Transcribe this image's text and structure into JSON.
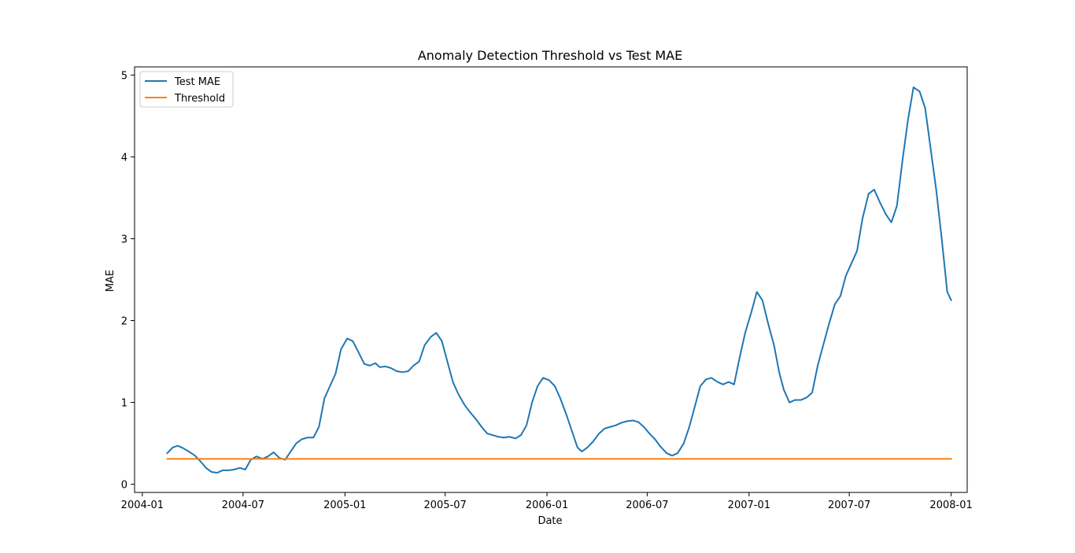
{
  "chart_data": {
    "type": "line",
    "title": "Anomaly Detection Threshold vs Test MAE",
    "xlabel": "Date",
    "ylabel": "MAE",
    "xlim": [
      "2003-12-18",
      "2008-01-30"
    ],
    "ylim": [
      -0.1,
      5.1
    ],
    "x_tick_labels": [
      "2004-01",
      "2004-07",
      "2005-01",
      "2005-07",
      "2006-01",
      "2006-07",
      "2007-01",
      "2007-07",
      "2008-01"
    ],
    "y_tick_labels": [
      "0",
      "1",
      "2",
      "3",
      "4",
      "5"
    ],
    "grid": false,
    "legend_position": "top-left",
    "series": [
      {
        "name": "Test MAE",
        "color": "#1f77b4",
        "points": [
          [
            "2004-02-15",
            0.38
          ],
          [
            "2004-02-25",
            0.45
          ],
          [
            "2004-03-05",
            0.47
          ],
          [
            "2004-03-15",
            0.44
          ],
          [
            "2004-03-25",
            0.4
          ],
          [
            "2004-04-05",
            0.35
          ],
          [
            "2004-04-15",
            0.28
          ],
          [
            "2004-04-25",
            0.2
          ],
          [
            "2004-05-05",
            0.15
          ],
          [
            "2004-05-15",
            0.14
          ],
          [
            "2004-05-25",
            0.17
          ],
          [
            "2004-06-05",
            0.17
          ],
          [
            "2004-06-15",
            0.18
          ],
          [
            "2004-06-25",
            0.2
          ],
          [
            "2004-07-05",
            0.18
          ],
          [
            "2004-07-15",
            0.3
          ],
          [
            "2004-07-25",
            0.34
          ],
          [
            "2004-08-05",
            0.31
          ],
          [
            "2004-08-15",
            0.34
          ],
          [
            "2004-08-25",
            0.39
          ],
          [
            "2004-09-05",
            0.32
          ],
          [
            "2004-09-15",
            0.3
          ],
          [
            "2004-09-25",
            0.4
          ],
          [
            "2004-10-05",
            0.5
          ],
          [
            "2004-10-15",
            0.55
          ],
          [
            "2004-10-25",
            0.57
          ],
          [
            "2004-11-05",
            0.57
          ],
          [
            "2004-11-15",
            0.7
          ],
          [
            "2004-11-25",
            1.05
          ],
          [
            "2004-12-05",
            1.2
          ],
          [
            "2004-12-15",
            1.35
          ],
          [
            "2004-12-25",
            1.65
          ],
          [
            "2005-01-05",
            1.78
          ],
          [
            "2005-01-15",
            1.75
          ],
          [
            "2005-01-25",
            1.62
          ],
          [
            "2005-02-05",
            1.47
          ],
          [
            "2005-02-15",
            1.45
          ],
          [
            "2005-02-25",
            1.48
          ],
          [
            "2005-03-05",
            1.43
          ],
          [
            "2005-03-15",
            1.44
          ],
          [
            "2005-03-25",
            1.42
          ],
          [
            "2005-04-05",
            1.38
          ],
          [
            "2005-04-15",
            1.37
          ],
          [
            "2005-04-25",
            1.38
          ],
          [
            "2005-05-05",
            1.45
          ],
          [
            "2005-05-15",
            1.5
          ],
          [
            "2005-05-25",
            1.7
          ],
          [
            "2005-06-05",
            1.8
          ],
          [
            "2005-06-15",
            1.85
          ],
          [
            "2005-06-25",
            1.75
          ],
          [
            "2005-07-05",
            1.5
          ],
          [
            "2005-07-15",
            1.25
          ],
          [
            "2005-07-25",
            1.1
          ],
          [
            "2005-08-05",
            0.97
          ],
          [
            "2005-08-15",
            0.88
          ],
          [
            "2005-08-25",
            0.8
          ],
          [
            "2005-09-05",
            0.7
          ],
          [
            "2005-09-15",
            0.62
          ],
          [
            "2005-09-25",
            0.6
          ],
          [
            "2005-10-05",
            0.58
          ],
          [
            "2005-10-15",
            0.57
          ],
          [
            "2005-10-25",
            0.58
          ],
          [
            "2005-11-05",
            0.56
          ],
          [
            "2005-11-15",
            0.6
          ],
          [
            "2005-11-25",
            0.72
          ],
          [
            "2005-12-05",
            1.0
          ],
          [
            "2005-12-15",
            1.2
          ],
          [
            "2005-12-25",
            1.3
          ],
          [
            "2006-01-05",
            1.27
          ],
          [
            "2006-01-15",
            1.2
          ],
          [
            "2006-01-25",
            1.05
          ],
          [
            "2006-02-05",
            0.85
          ],
          [
            "2006-02-15",
            0.65
          ],
          [
            "2006-02-25",
            0.45
          ],
          [
            "2006-03-05",
            0.4
          ],
          [
            "2006-03-15",
            0.45
          ],
          [
            "2006-03-25",
            0.52
          ],
          [
            "2006-04-05",
            0.62
          ],
          [
            "2006-04-15",
            0.68
          ],
          [
            "2006-04-25",
            0.7
          ],
          [
            "2006-05-05",
            0.72
          ],
          [
            "2006-05-15",
            0.75
          ],
          [
            "2006-05-25",
            0.77
          ],
          [
            "2006-06-05",
            0.78
          ],
          [
            "2006-06-15",
            0.76
          ],
          [
            "2006-06-25",
            0.7
          ],
          [
            "2006-07-05",
            0.62
          ],
          [
            "2006-07-15",
            0.55
          ],
          [
            "2006-07-25",
            0.46
          ],
          [
            "2006-08-05",
            0.38
          ],
          [
            "2006-08-15",
            0.35
          ],
          [
            "2006-08-25",
            0.38
          ],
          [
            "2006-09-05",
            0.5
          ],
          [
            "2006-09-15",
            0.7
          ],
          [
            "2006-09-25",
            0.95
          ],
          [
            "2006-10-05",
            1.2
          ],
          [
            "2006-10-15",
            1.28
          ],
          [
            "2006-10-25",
            1.3
          ],
          [
            "2006-11-05",
            1.25
          ],
          [
            "2006-11-15",
            1.22
          ],
          [
            "2006-11-25",
            1.25
          ],
          [
            "2006-12-05",
            1.22
          ],
          [
            "2006-12-15",
            1.55
          ],
          [
            "2006-12-25",
            1.85
          ],
          [
            "2007-01-05",
            2.1
          ],
          [
            "2007-01-15",
            2.35
          ],
          [
            "2007-01-25",
            2.25
          ],
          [
            "2007-02-05",
            1.95
          ],
          [
            "2007-02-15",
            1.7
          ],
          [
            "2007-02-25",
            1.35
          ],
          [
            "2007-03-05",
            1.15
          ],
          [
            "2007-03-15",
            1.0
          ],
          [
            "2007-03-25",
            1.03
          ],
          [
            "2007-04-05",
            1.03
          ],
          [
            "2007-04-15",
            1.06
          ],
          [
            "2007-04-25",
            1.12
          ],
          [
            "2007-05-05",
            1.45
          ],
          [
            "2007-05-15",
            1.7
          ],
          [
            "2007-05-25",
            1.95
          ],
          [
            "2007-06-05",
            2.2
          ],
          [
            "2007-06-15",
            2.3
          ],
          [
            "2007-06-25",
            2.55
          ],
          [
            "2007-07-05",
            2.7
          ],
          [
            "2007-07-15",
            2.85
          ],
          [
            "2007-07-25",
            3.25
          ],
          [
            "2007-08-05",
            3.55
          ],
          [
            "2007-08-15",
            3.6
          ],
          [
            "2007-08-25",
            3.45
          ],
          [
            "2007-09-05",
            3.3
          ],
          [
            "2007-09-15",
            3.2
          ],
          [
            "2007-09-25",
            3.4
          ],
          [
            "2007-10-05",
            3.95
          ],
          [
            "2007-10-15",
            4.45
          ],
          [
            "2007-10-25",
            4.85
          ],
          [
            "2007-11-05",
            4.8
          ],
          [
            "2007-11-15",
            4.6
          ],
          [
            "2007-11-25",
            4.1
          ],
          [
            "2007-12-05",
            3.6
          ],
          [
            "2007-12-15",
            3.0
          ],
          [
            "2007-12-25",
            2.35
          ],
          [
            "2008-01-01",
            2.25
          ]
        ]
      },
      {
        "name": "Threshold",
        "color": "#ff7f0e",
        "points": [
          [
            "2004-02-15",
            0.31
          ],
          [
            "2008-01-01",
            0.31
          ]
        ]
      }
    ]
  }
}
